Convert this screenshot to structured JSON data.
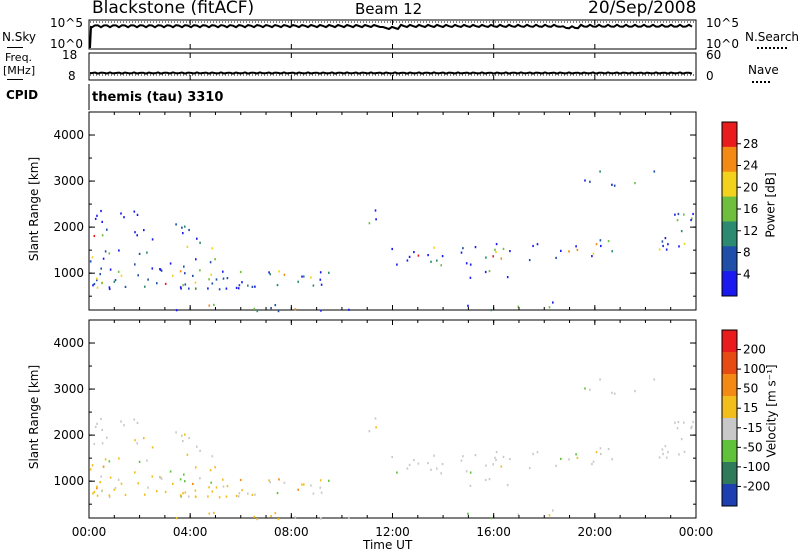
{
  "header": {
    "title": "Blackstone (fitACF)",
    "beam": "Beam 12",
    "date": "20/Sep/2008"
  },
  "top_panels": {
    "nsky": {
      "label": "N.Sky",
      "right_label": "N.Search",
      "ticks_left": [
        "10^5",
        "10^0"
      ],
      "ticks_right": [
        "10^5",
        "10^0"
      ]
    },
    "freq": {
      "label_line1": "Freq.",
      "label_line2": "[MHz]",
      "right_label": "Nave",
      "ticks_left": [
        "18",
        "8"
      ],
      "ticks_right": [
        "60",
        "0"
      ]
    },
    "cpid": {
      "label": "CPID",
      "text": "themis (tau) 3310"
    }
  },
  "chart_data": [
    {
      "type": "heatmap",
      "name": "power",
      "ylabel": "Slant Range [km]",
      "ylim": [
        200,
        4500
      ],
      "yticks": [
        1000,
        2000,
        3000,
        4000
      ],
      "colorbar": {
        "label": "Power [dB]",
        "ticks": [
          "4",
          "8",
          "12",
          "16",
          "20",
          "24",
          "28"
        ],
        "colors": [
          "#1a1aee",
          "#1f4fa8",
          "#2c8a70",
          "#6fbf3f",
          "#f2d21c",
          "#f28a14",
          "#e81c1c"
        ]
      }
    },
    {
      "type": "heatmap",
      "name": "velocity",
      "ylabel": "Slant Range [km]",
      "ylim": [
        200,
        4500
      ],
      "yticks": [
        1000,
        2000,
        3000,
        4000
      ],
      "colorbar": {
        "label": "Velocity [m s⁻¹]",
        "ticks": [
          "200",
          "100",
          "50",
          "15",
          "-15",
          "-50",
          "-100",
          "-200"
        ],
        "colors": [
          "#1e3fb0",
          "#2e7a5a",
          "#5fc23a",
          "#c8c8c8",
          "#f2be1c",
          "#f28a14",
          "#e84a14",
          "#e81c1c"
        ]
      }
    }
  ],
  "xaxis": {
    "label": "Time UT",
    "ticks": [
      "00:00",
      "04:00",
      "08:00",
      "12:00",
      "16:00",
      "20:00",
      "00:00"
    ]
  }
}
